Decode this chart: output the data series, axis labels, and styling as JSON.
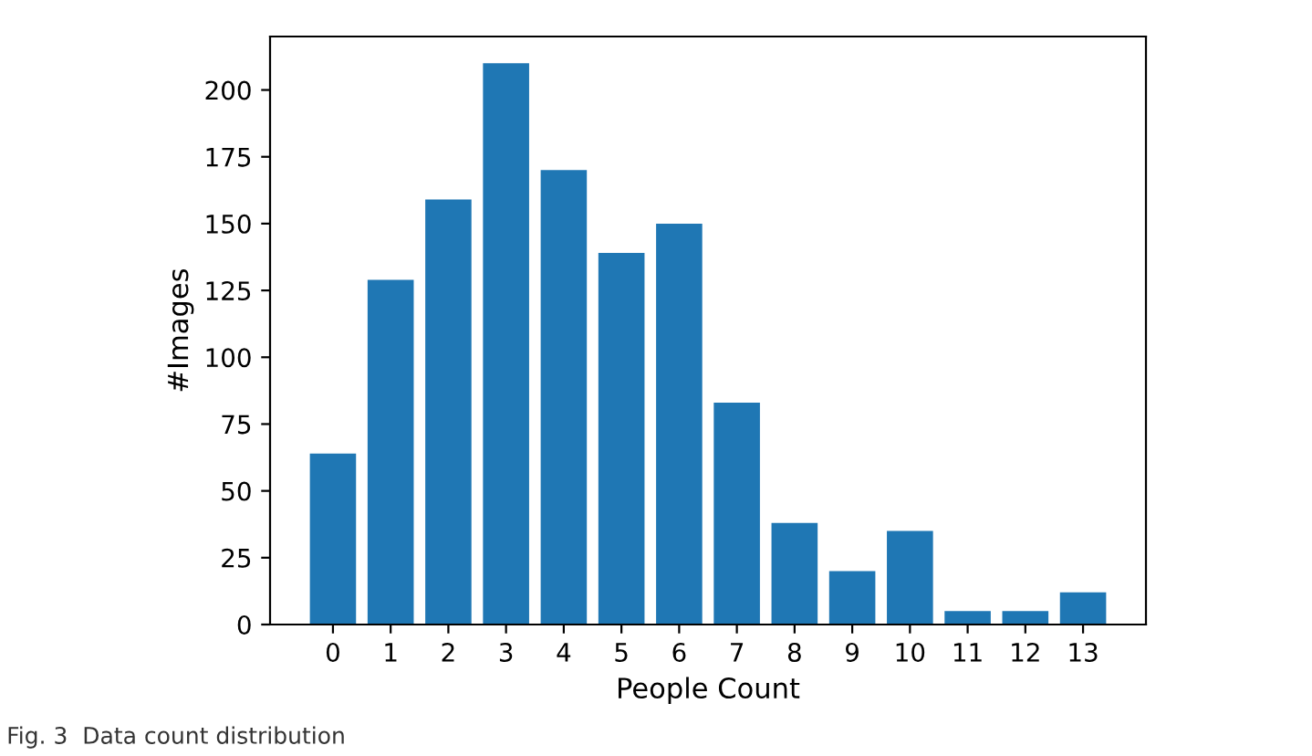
{
  "chart_data": {
    "type": "bar",
    "xlabel": "People Count",
    "ylabel": "#Images",
    "categories": [
      "0",
      "1",
      "2",
      "3",
      "4",
      "5",
      "6",
      "7",
      "8",
      "9",
      "10",
      "11",
      "12",
      "13"
    ],
    "values": [
      64,
      129,
      159,
      210,
      170,
      139,
      150,
      83,
      38,
      20,
      35,
      5,
      5,
      12
    ],
    "color": "#1f77b4",
    "ylim": [
      0,
      220
    ],
    "yticks": [
      0,
      25,
      50,
      75,
      100,
      125,
      150,
      175,
      200
    ],
    "grid": false,
    "legend": false,
    "annotations": [
      "Fig. 3  Data count distribution"
    ]
  }
}
